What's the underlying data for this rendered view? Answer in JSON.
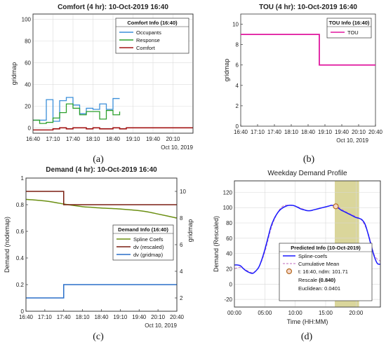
{
  "colors": {
    "occupants": "#3b8fd9",
    "response": "#2ca02c",
    "comfort": "#a31515",
    "tou": "#e0169e",
    "spline": "#6b8f12",
    "dv_rescaled": "#7a1f12",
    "dv_gridmap": "#2a6fc9",
    "profile": "#1a1aff",
    "cum_mean": "#c986c9",
    "highlight": "#d4cf8a",
    "marker_fill": "#f4d6c8",
    "marker_edge": "#b56a20"
  },
  "chart_data": [
    {
      "id": "a",
      "type": "line",
      "title": "Comfort (4 hr): 10-Oct-2019 16:40",
      "xlabel": "",
      "ylabel": "gridmap",
      "date_label": "Oct 10, 2019",
      "caption": "(a)",
      "xlim": [
        "16:40",
        "20:40"
      ],
      "ylim": [
        -5,
        105
      ],
      "y_ticks": [
        0,
        20,
        40,
        60,
        80,
        100
      ],
      "x_ticks": [
        "16:40",
        "17:10",
        "17:40",
        "18:10",
        "18:40",
        "19:10",
        "19:40",
        "20:10"
      ],
      "grid": true,
      "legend_title": "Comfort Info (16:40)",
      "legend_position": "top-right",
      "series": [
        {
          "name": "Occupants",
          "step": true,
          "x": [
            "16:40",
            "16:50",
            "17:00",
            "17:10",
            "17:20",
            "17:30",
            "17:40",
            "17:50",
            "18:00",
            "18:10",
            "18:20",
            "18:30",
            "18:40",
            "18:50"
          ],
          "y": [
            7,
            7,
            26,
            6,
            25,
            28,
            21,
            13,
            18,
            17,
            22,
            17,
            27,
            27
          ]
        },
        {
          "name": "Response",
          "step": true,
          "x": [
            "16:40",
            "16:50",
            "17:00",
            "17:10",
            "17:20",
            "17:30",
            "17:40",
            "17:50",
            "18:00",
            "18:10",
            "18:20",
            "18:30",
            "18:40",
            "18:50"
          ],
          "y": [
            7,
            4,
            5,
            9,
            14,
            22,
            18,
            12,
            15,
            15,
            8,
            16,
            12,
            15
          ]
        },
        {
          "name": "Comfort",
          "step": true,
          "x": [
            "16:40",
            "17:10",
            "17:20",
            "17:30",
            "17:40",
            "17:50",
            "18:00",
            "18:10",
            "18:20",
            "18:30",
            "18:40",
            "18:50",
            "19:00",
            "20:40"
          ],
          "y": [
            -2,
            -1,
            0,
            -1,
            0,
            0,
            -1,
            0,
            -1,
            -1,
            0,
            -1,
            0,
            0
          ]
        }
      ]
    },
    {
      "id": "b",
      "type": "line",
      "title": "TOU (4 hr): 10-Oct-2019 16:40",
      "xlabel": "",
      "ylabel": "gridmap",
      "date_label": "Oct 10, 2019",
      "caption": "(b)",
      "xlim": [
        "16:40",
        "20:40"
      ],
      "ylim": [
        0,
        11
      ],
      "y_ticks": [
        0,
        2,
        4,
        6,
        8,
        10
      ],
      "x_ticks": [
        "16:40",
        "17:10",
        "17:40",
        "18:10",
        "18:40",
        "19:10",
        "19:40",
        "20:10",
        "20:40"
      ],
      "grid": false,
      "legend_title": "TOU Info (16:40)",
      "legend_position": "top-right",
      "series": [
        {
          "name": "TOU",
          "step": true,
          "x": [
            "16:40",
            "19:00",
            "20:40"
          ],
          "y": [
            9,
            6,
            6
          ]
        }
      ]
    },
    {
      "id": "c",
      "type": "line",
      "title": "Demand (4 hr): 10-Oct-2019 16:40",
      "xlabel": "",
      "ylabel": "Demand (nodemap)",
      "y2label": "gridmap",
      "date_label": "Oct 10, 2019",
      "caption": "(c)",
      "xlim": [
        "16:40",
        "20:40"
      ],
      "ylim": [
        0,
        1.0
      ],
      "y_ticks": [
        0,
        0.2,
        0.4,
        0.6,
        0.8,
        1
      ],
      "y_tick_labels": [
        "0",
        "0.2",
        "0.4",
        "0.6",
        "0.8",
        "1"
      ],
      "y2lim": [
        1,
        11
      ],
      "y2_ticks": [
        2,
        4,
        6,
        8,
        10
      ],
      "x_ticks": [
        "16:40",
        "17:10",
        "17:40",
        "18:10",
        "18:40",
        "19:10",
        "19:40",
        "20:10",
        "20:40"
      ],
      "grid": false,
      "legend_title": "Demand Info (16:40)",
      "legend_position": "center-right",
      "series": [
        {
          "name": "Spline Coefs",
          "axis": "left",
          "step": false,
          "x": [
            "16:40",
            "16:55",
            "17:10",
            "17:25",
            "17:40",
            "17:55",
            "18:10",
            "18:25",
            "18:40",
            "18:55",
            "19:10",
            "19:25",
            "19:40",
            "19:55",
            "20:10",
            "20:25",
            "20:40"
          ],
          "y": [
            0.84,
            0.835,
            0.828,
            0.818,
            0.805,
            0.795,
            0.785,
            0.78,
            0.775,
            0.772,
            0.768,
            0.762,
            0.755,
            0.745,
            0.73,
            0.715,
            0.7
          ]
        },
        {
          "name": "dv (rescaled)",
          "axis": "left",
          "step": true,
          "x": [
            "16:40",
            "17:40",
            "20:40"
          ],
          "y": [
            0.9,
            0.8,
            0.8
          ]
        },
        {
          "name": "dv (gridmap)",
          "axis": "left",
          "step": true,
          "x": [
            "16:40",
            "17:40",
            "20:40"
          ],
          "y": [
            0.1,
            0.2,
            0.2
          ]
        }
      ]
    },
    {
      "id": "d",
      "type": "line",
      "title": "Weekday Demand Profile",
      "xlabel": "Time (HH:MM)",
      "ylabel": "Demand (Rescaled)",
      "caption": "(d)",
      "xlim": [
        0,
        24
      ],
      "ylim": [
        -30,
        135
      ],
      "y_ticks": [
        -20,
        0,
        20,
        40,
        60,
        80,
        100,
        120
      ],
      "x_ticks": [
        0,
        5,
        10,
        15,
        20
      ],
      "x_tick_labels": [
        "00:00",
        "05:00",
        "10:00",
        "15:00",
        "20:00"
      ],
      "grid": true,
      "highlight_x": [
        16.5,
        20.5
      ],
      "legend_title": "Predicted Info (10-Oct-2019)",
      "legend_position": "bottom-right",
      "legend_lines": {
        "t_line": "t: 16:40, ndm: 101.71",
        "rescale_prefix": "Rescale ",
        "rescale_value": "(0.840)",
        "euclidean": "Euclidean: 0.0401"
      },
      "marker": {
        "x": 16.67,
        "y": 101.71
      },
      "series": [
        {
          "name": "Spline-coefs",
          "x": [
            0,
            0.5,
            1,
            1.5,
            2,
            2.5,
            3,
            3.5,
            4,
            4.5,
            5,
            5.5,
            6,
            6.5,
            7,
            7.5,
            8,
            8.5,
            9,
            9.5,
            10,
            10.5,
            11,
            11.5,
            12,
            12.5,
            13,
            13.5,
            14,
            14.5,
            15,
            15.5,
            16,
            16.5,
            17,
            17.5,
            18,
            18.5,
            19,
            19.5,
            20,
            20.5,
            21,
            21.5,
            22,
            22.5,
            23,
            23.5,
            24
          ],
          "y": [
            25,
            25,
            24,
            20,
            17,
            15,
            14,
            17,
            22,
            32,
            45,
            60,
            75,
            85,
            92,
            97,
            100,
            102,
            103,
            103,
            102,
            100,
            98,
            97,
            96,
            96,
            97,
            98,
            99,
            100,
            101,
            102,
            103,
            102,
            100,
            97,
            95,
            93,
            91,
            89,
            87,
            86,
            84,
            78,
            65,
            50,
            36,
            27,
            26
          ]
        },
        {
          "name": "Cumulative Mean",
          "x": [
            0,
            1,
            2,
            3,
            4,
            5,
            6,
            7,
            8,
            9,
            10,
            11,
            12,
            13,
            14,
            15,
            16,
            17,
            18,
            19,
            20,
            21,
            22,
            23,
            24
          ],
          "y": [
            20,
            22,
            18,
            15,
            22,
            42,
            72,
            92,
            102,
            103,
            102,
            99,
            96,
            97,
            99,
            101,
            103,
            101,
            96,
            92,
            88,
            83,
            66,
            38,
            30
          ]
        }
      ]
    }
  ]
}
